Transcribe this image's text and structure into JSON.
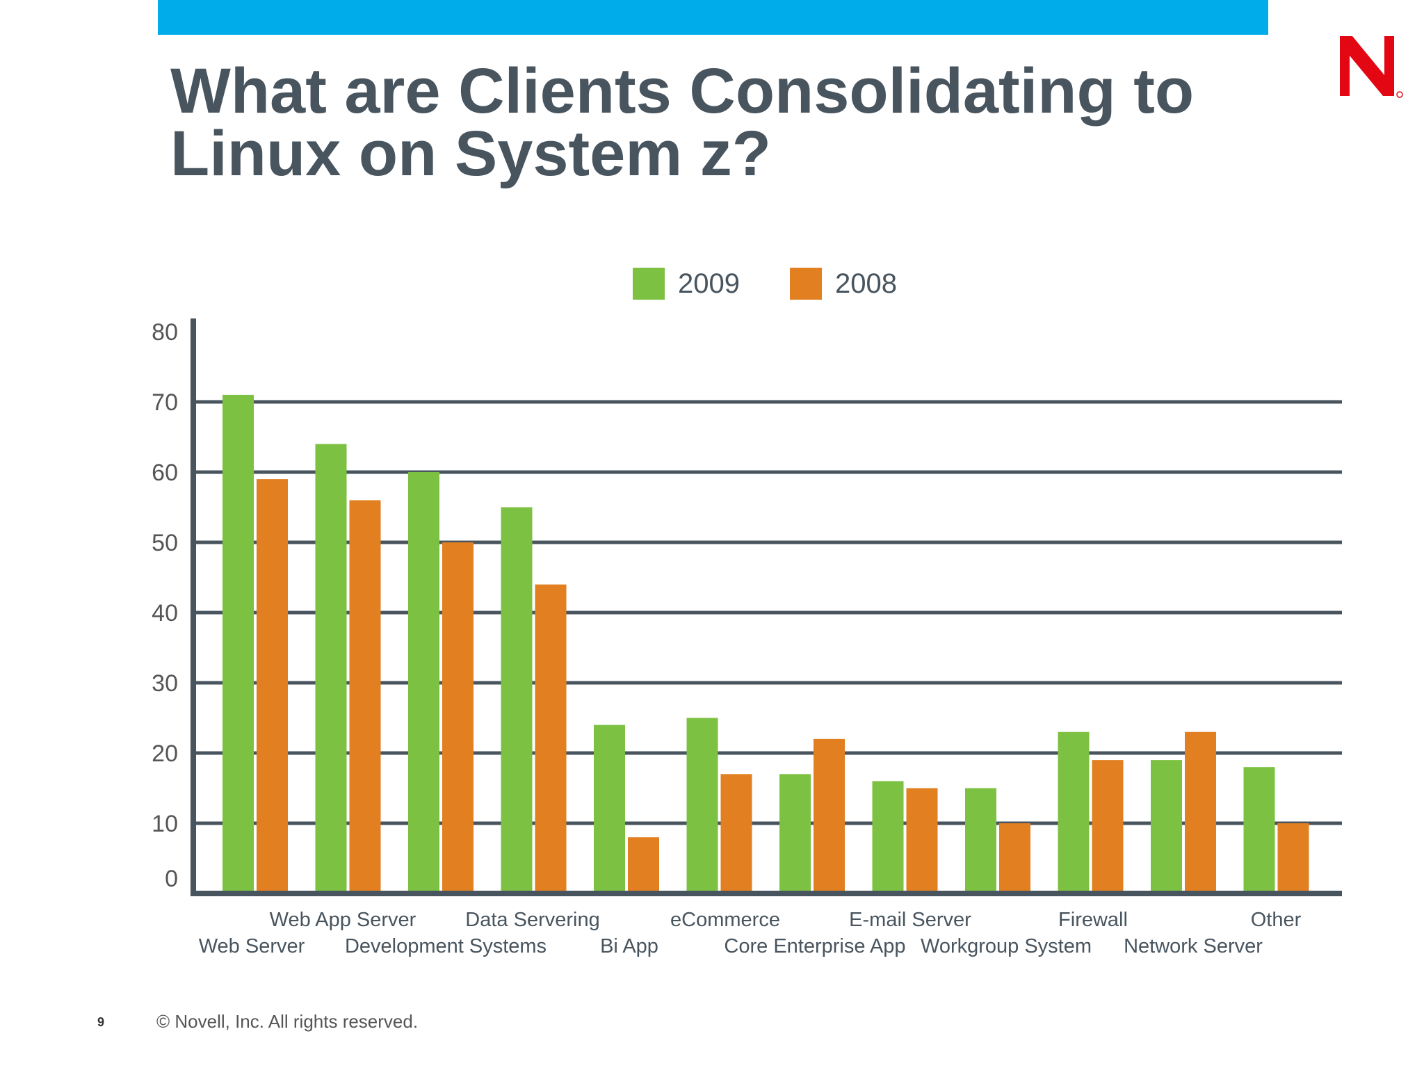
{
  "slide": {
    "title_line1": "What are Clients Consolidating to",
    "title_line2": "Linux on System z?",
    "page_number": "9",
    "copyright": "© Novell, Inc.  All rights reserved.",
    "logo_letter": "N",
    "colors": {
      "top_bar": "#00adea",
      "title": "#48545e",
      "logo": "#e30613"
    }
  },
  "chart_data": {
    "type": "bar",
    "categories": [
      "Web Server",
      "Web App Server",
      "Development Systems",
      "Data Servering",
      "Bi App",
      "eCommerce",
      "Core Enterprise App",
      "E-mail Server",
      "Workgroup System",
      "Firewall",
      "Network Server",
      "Other"
    ],
    "series": [
      {
        "name": "2009",
        "color": "#7dc142",
        "values": [
          71,
          64,
          60,
          55,
          24,
          25,
          17,
          16,
          15,
          23,
          19,
          18
        ]
      },
      {
        "name": "2008",
        "color": "#e27f21",
        "values": [
          59,
          56,
          50,
          44,
          8,
          17,
          22,
          15,
          10,
          19,
          23,
          10
        ]
      }
    ],
    "yticks": [
      0,
      10,
      20,
      30,
      40,
      50,
      60,
      70,
      80
    ],
    "ylim": [
      0,
      80
    ],
    "grid": true,
    "legend": "top-center"
  }
}
